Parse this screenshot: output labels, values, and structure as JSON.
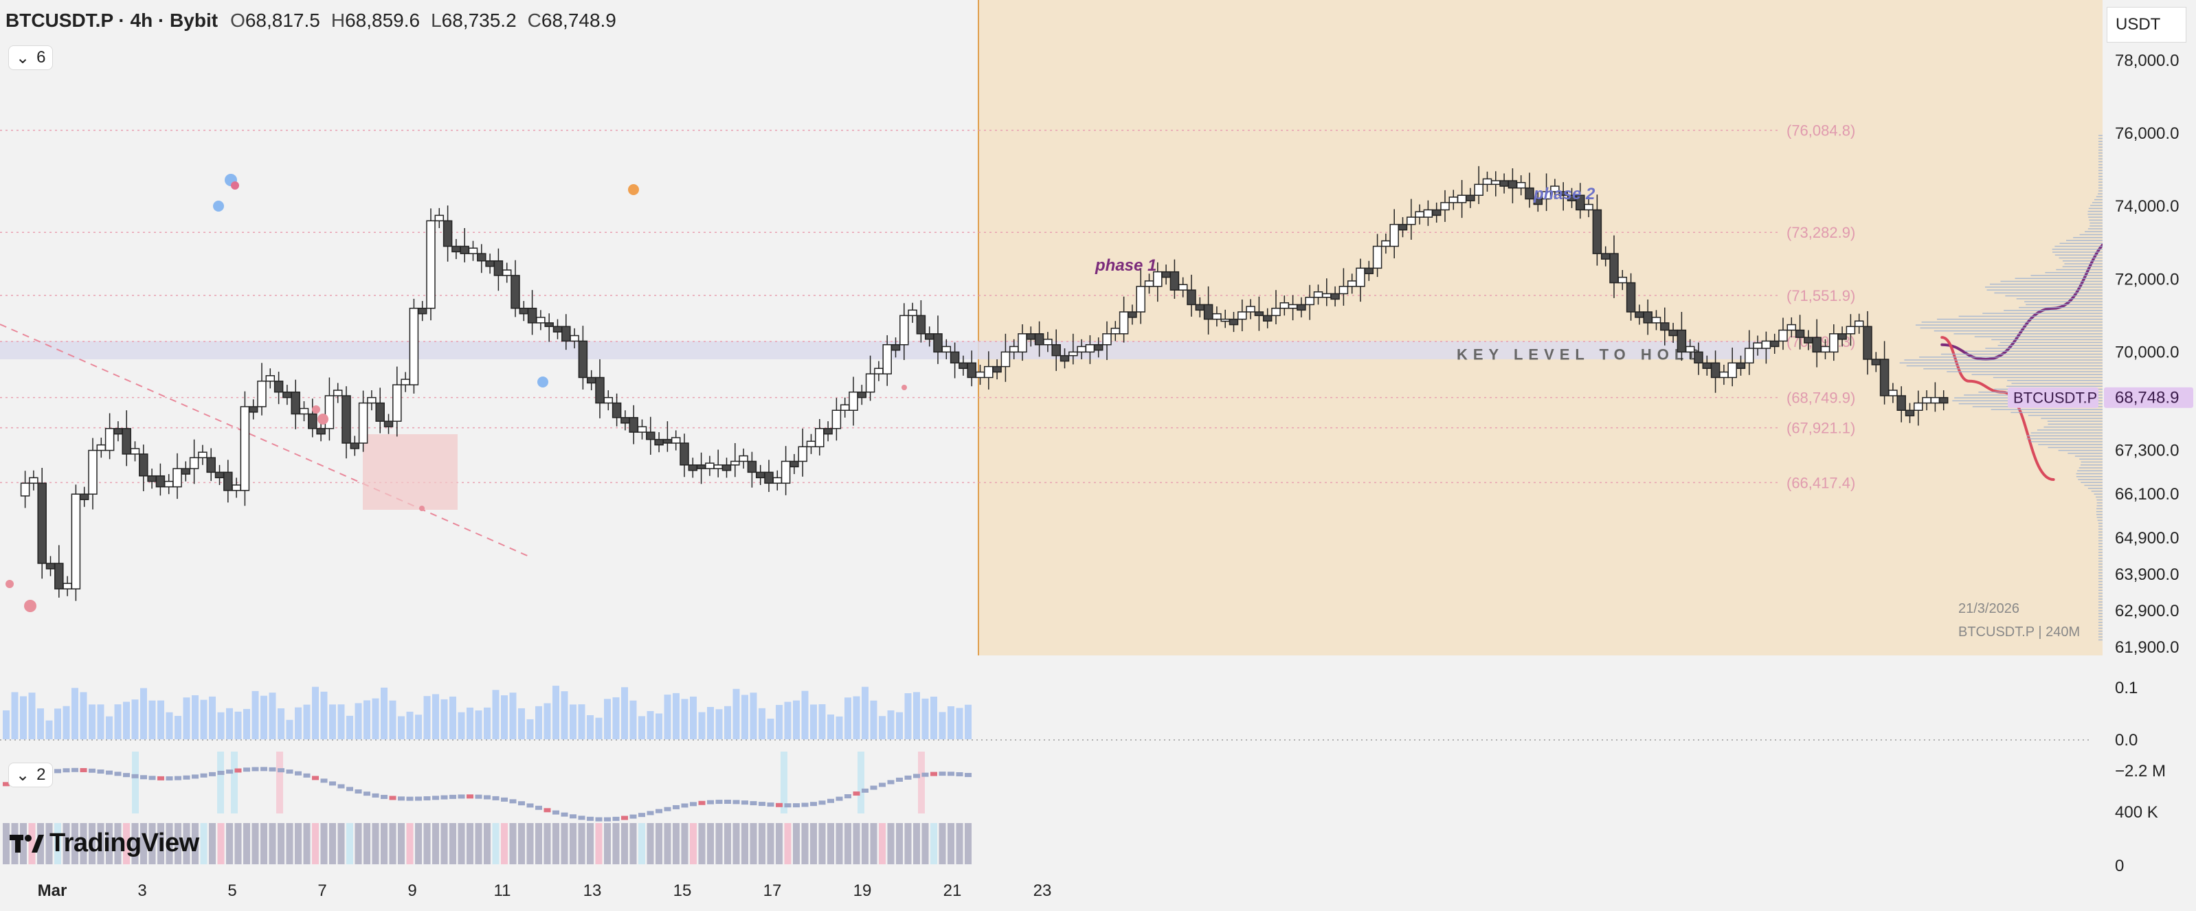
{
  "header": {
    "title": "BTCUSDT.P · 4h · Bybit",
    "ohlc": {
      "open_label": "O",
      "open": "68,817.5",
      "high_label": "H",
      "high": "68,859.6",
      "low_label": "L",
      "low": "68,735.2",
      "close_label": "C",
      "close": "68,748.9"
    }
  },
  "collapse_main": "6",
  "collapse_osc": "2",
  "unit": "USDT",
  "brand": "TradingView",
  "colors": {
    "projection_zone": "#f3e4cc",
    "key_zone": "#dcdcec",
    "level_line": "#e8a0b0",
    "phase1": "#7b2b7b",
    "phase2": "#6c72c8",
    "bear_path": "#d94a5c",
    "volume": "#b9d1f5",
    "price_tag": "#e2c8f0"
  },
  "chart_data": [
    {
      "type": "candlestick",
      "title": "BTCUSDT.P · 4h · Bybit",
      "ylim": [
        61900,
        78000
      ],
      "y_axis_ticks": [
        "78,000.0",
        "76,000.0",
        "74,000.0",
        "72,000.0",
        "70,000.0",
        "68,749.9",
        "67,300.0",
        "66,100.0",
        "64,900.0",
        "63,900.0",
        "62,900.0",
        "61,900.0"
      ],
      "x_axis_ticks": [
        "Mar",
        "3",
        "5",
        "7",
        "9",
        "11",
        "13",
        "15",
        "17",
        "19",
        "21",
        "23"
      ],
      "levels": [
        "(76,084.8)",
        "(73,282.9)",
        "(71,551.9)",
        "(70,290.3)",
        "(68,749.9)",
        "(67,921.1)",
        "(66,417.4)"
      ],
      "key_zone": [
        69800,
        70300
      ],
      "key_level_label": "KEY LEVEL TO HOLD",
      "current_price_label": "BTCUSDT.P",
      "current_price": "68,748.9",
      "annotations": [
        "phase 1",
        "phase 2"
      ],
      "watermark": {
        "date": "21/3/2026",
        "text": "BTCUSDT.P | 240M"
      },
      "close_path": [
        [
          0.0,
          66050
        ],
        [
          0.5,
          66400
        ],
        [
          1.0,
          64200
        ],
        [
          1.5,
          63500
        ],
        [
          2.0,
          66100
        ],
        [
          2.5,
          67300
        ],
        [
          3.0,
          67900
        ],
        [
          3.5,
          67200
        ],
        [
          4.0,
          66600
        ],
        [
          4.5,
          66300
        ],
        [
          5.0,
          66800
        ],
        [
          5.5,
          67100
        ],
        [
          6.0,
          66700
        ],
        [
          6.5,
          66200
        ],
        [
          7.0,
          68500
        ],
        [
          7.5,
          69200
        ],
        [
          8.0,
          68900
        ],
        [
          8.5,
          68300
        ],
        [
          9.0,
          67900
        ],
        [
          9.5,
          68800
        ],
        [
          10.0,
          67500
        ],
        [
          10.5,
          68600
        ],
        [
          11.0,
          68100
        ],
        [
          11.5,
          69100
        ],
        [
          12.0,
          71200
        ],
        [
          12.5,
          73600
        ],
        [
          13.0,
          72900
        ],
        [
          13.5,
          72700
        ],
        [
          14.0,
          72500
        ],
        [
          14.5,
          72100
        ],
        [
          15.0,
          71200
        ],
        [
          15.5,
          70800
        ],
        [
          16.0,
          70700
        ],
        [
          16.5,
          70300
        ],
        [
          17.0,
          69300
        ],
        [
          17.5,
          68600
        ],
        [
          18.0,
          68200
        ],
        [
          18.5,
          67800
        ],
        [
          19.0,
          67600
        ],
        [
          19.5,
          67500
        ],
        [
          20.0,
          66900
        ],
        [
          20.5,
          66800
        ],
        [
          21.0,
          66900
        ],
        [
          21.5,
          67000
        ],
        [
          22.0,
          66700
        ],
        [
          22.5,
          66400
        ],
        [
          23.0,
          67000
        ],
        [
          23.5,
          67400
        ],
        [
          24.0,
          67900
        ],
        [
          24.5,
          68400
        ],
        [
          25.0,
          68900
        ],
        [
          25.5,
          69400
        ],
        [
          26.0,
          70200
        ],
        [
          26.5,
          71000
        ],
        [
          27.0,
          70500
        ],
        [
          27.5,
          70000
        ],
        [
          28.0,
          69700
        ],
        [
          28.5,
          69300
        ],
        [
          29.0,
          69600
        ],
        [
          29.5,
          70000
        ],
        [
          30.0,
          70500
        ],
        [
          30.5,
          70200
        ],
        [
          31.0,
          69900
        ],
        [
          31.5,
          70000
        ],
        [
          32.0,
          70200
        ],
        [
          32.5,
          70500
        ],
        [
          33.0,
          71100
        ],
        [
          33.5,
          71800
        ],
        [
          34.0,
          72200
        ],
        [
          34.5,
          71700
        ],
        [
          35.0,
          71300
        ],
        [
          35.5,
          70900
        ],
        [
          36.0,
          70900
        ],
        [
          36.5,
          71100
        ],
        [
          37.0,
          71000
        ],
        [
          37.5,
          71200
        ],
        [
          38.0,
          71300
        ],
        [
          38.5,
          71500
        ],
        [
          39.0,
          71600
        ],
        [
          39.5,
          71800
        ],
        [
          40.0,
          72300
        ],
        [
          40.5,
          72900
        ],
        [
          41.0,
          73500
        ],
        [
          41.5,
          73700
        ],
        [
          42.0,
          73900
        ],
        [
          42.5,
          74100
        ],
        [
          43.0,
          74300
        ],
        [
          43.5,
          74600
        ],
        [
          44.0,
          74700
        ],
        [
          44.5,
          74500
        ],
        [
          45.0,
          74200
        ],
        [
          45.5,
          74400
        ],
        [
          46.0,
          74300
        ],
        [
          46.5,
          73900
        ],
        [
          47.0,
          72700
        ],
        [
          47.5,
          71900
        ],
        [
          48.0,
          71100
        ],
        [
          48.5,
          70800
        ],
        [
          49.0,
          70600
        ],
        [
          49.5,
          70000
        ],
        [
          50.0,
          69700
        ],
        [
          50.5,
          69300
        ],
        [
          51.0,
          69700
        ],
        [
          51.5,
          70100
        ],
        [
          52.0,
          70300
        ],
        [
          52.5,
          70600
        ],
        [
          53.0,
          70400
        ],
        [
          53.5,
          70000
        ],
        [
          54.0,
          70500
        ],
        [
          54.5,
          70700
        ],
        [
          55.0,
          69800
        ],
        [
          55.5,
          68800
        ],
        [
          56.0,
          68400
        ],
        [
          56.5,
          68600
        ],
        [
          57.0,
          68749.9
        ]
      ],
      "projections": [
        {
          "name": "phase 1",
          "points": [
            [
              57.2,
              70200
            ],
            [
              58.5,
              69800
            ],
            [
              60.5,
              71200
            ],
            [
              62.5,
              73200
            ],
            [
              64.5,
              72400
            ],
            [
              66.5,
              69900
            ]
          ]
        },
        {
          "name": "phase 2",
          "points": [
            [
              67.5,
              70000
            ],
            [
              69.5,
              69500
            ],
            [
              71.5,
              73000
            ],
            [
              74.0,
              74900
            ],
            [
              76.5,
              72300
            ],
            [
              79.0,
              73000
            ],
            [
              81.5,
              74900
            ],
            [
              84.0,
              74600
            ],
            [
              86.0,
              76100
            ],
            [
              88.0,
              74500
            ],
            [
              89.0,
              73200
            ]
          ]
        },
        {
          "name": "bear",
          "points": [
            [
              57.2,
              70400
            ],
            [
              58.0,
              69200
            ],
            [
              59.0,
              68900
            ],
            [
              60.5,
              66500
            ]
          ]
        }
      ]
    }
  ]
}
